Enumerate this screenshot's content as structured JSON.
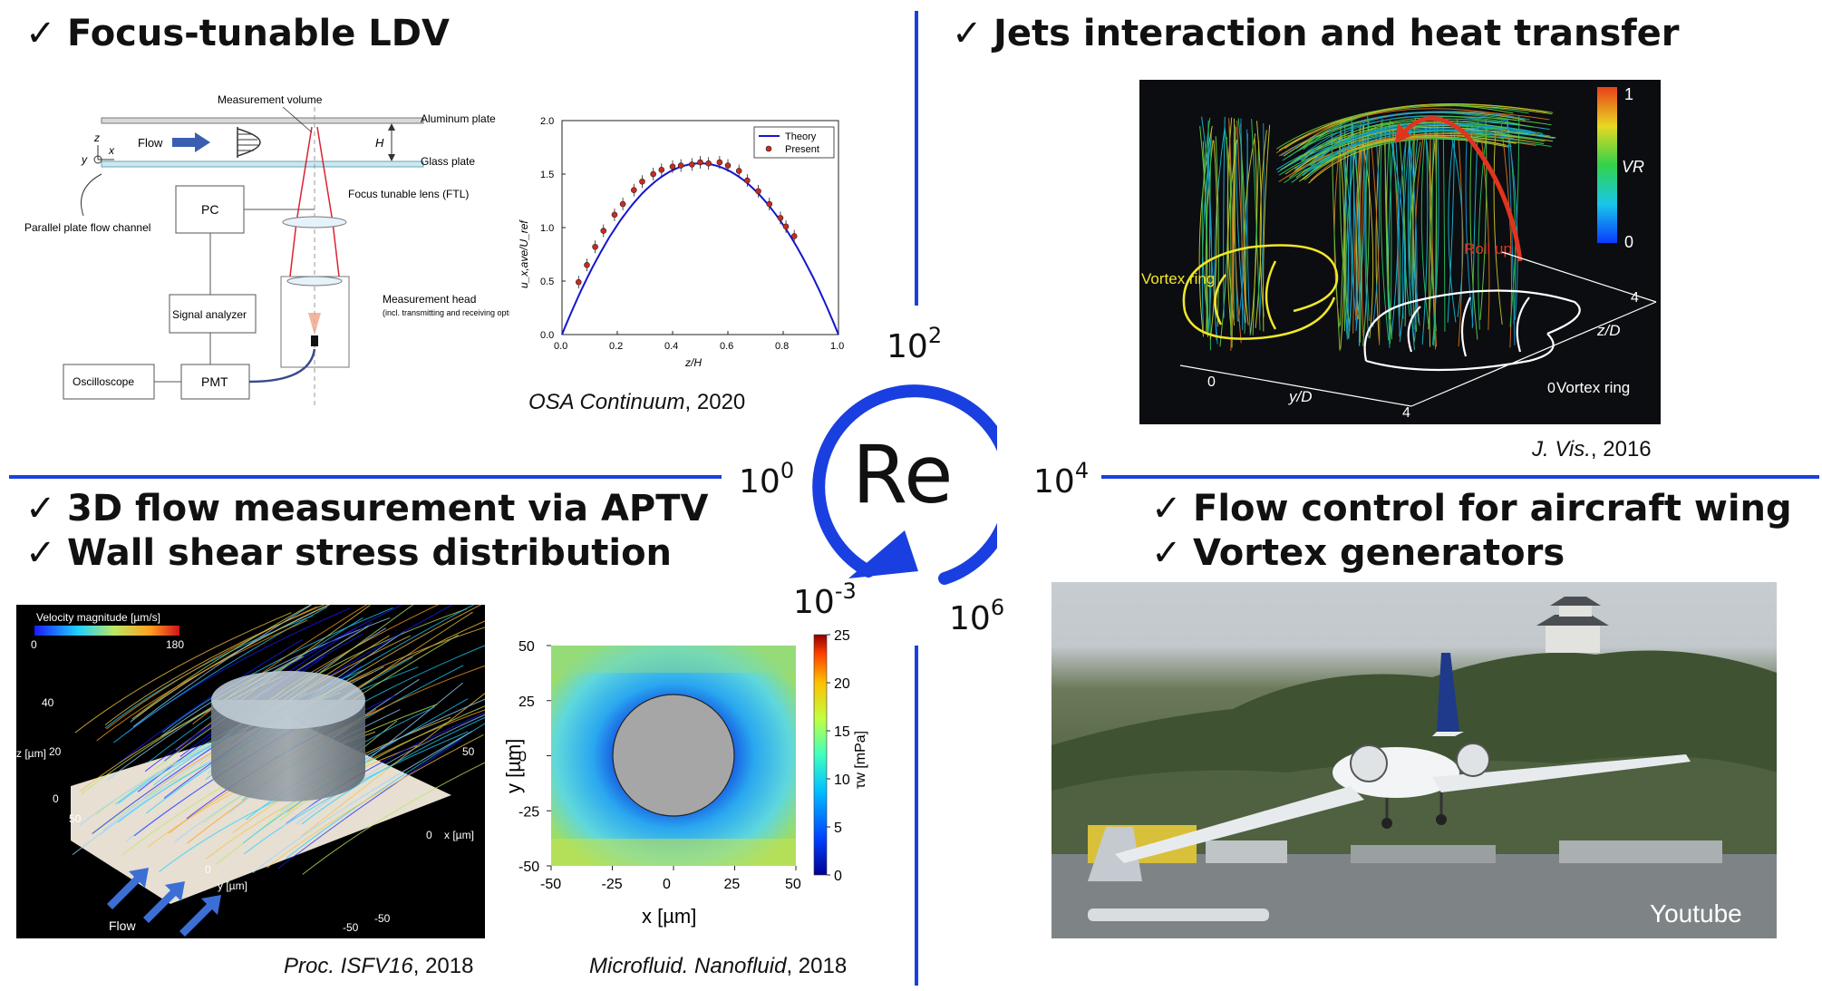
{
  "headings": {
    "top_left": "Focus-tunable LDV",
    "top_right": "Jets interaction and heat transfer",
    "bottom_left_1": "3D flow measurement via APTV",
    "bottom_left_2": "Wall shear stress distribution",
    "bottom_right_1": "Flow control for aircraft wing",
    "bottom_right_2": "Vortex generators"
  },
  "check_mark": "✓",
  "center_label": "Re",
  "re_values": [
    {
      "base": "10",
      "exp": "2"
    },
    {
      "base": "10",
      "exp": "0"
    },
    {
      "base": "10",
      "exp": "4"
    },
    {
      "base": "10",
      "exp": "-3"
    },
    {
      "base": "10",
      "exp": "6"
    }
  ],
  "citations": {
    "osa": {
      "journal": "OSA Continuum",
      "year": ", 2020"
    },
    "jvis": {
      "journal": "J. Vis.",
      "year": ", 2016"
    },
    "isfv": {
      "journal": "Proc. ISFV16",
      "year": ", 2018"
    },
    "micro": {
      "journal": "Microfluid. Nanofluid",
      "year": ", 2018"
    }
  },
  "ldv_schematic": {
    "measurement_volume": "Measurement volume",
    "aluminum_plate": "Aluminum plate",
    "glass_plate": "Glass plate",
    "flow": "Flow",
    "h": "H",
    "parallel_channel": "Parallel plate flow channel",
    "pc": "PC",
    "ftl": "Focus tunable lens (FTL)",
    "signal_analyzer": "Signal analyzer",
    "measurement_head": "Measurement head",
    "measurement_head_sub": "(incl. transmitting and receiving optics)",
    "oscilloscope": "Oscilloscope",
    "pmt": "PMT",
    "axis_z": "z",
    "axis_x": "x",
    "axis_y": "y"
  },
  "profile_chart": {
    "xlabel": "z/H",
    "ylabel": "u_x,ave/U_ref",
    "legend": [
      "Theory",
      "Present"
    ],
    "xticks": [
      "0.0",
      "0.2",
      "0.4",
      "0.6",
      "0.8",
      "1.0"
    ],
    "yticks": [
      "0.0",
      "0.5",
      "1.0",
      "1.5",
      "2.0"
    ],
    "present_points": [
      [
        0.06,
        0.49
      ],
      [
        0.09,
        0.65
      ],
      [
        0.12,
        0.82
      ],
      [
        0.15,
        0.97
      ],
      [
        0.19,
        1.12
      ],
      [
        0.22,
        1.22
      ],
      [
        0.26,
        1.35
      ],
      [
        0.29,
        1.43
      ],
      [
        0.33,
        1.5
      ],
      [
        0.36,
        1.54
      ],
      [
        0.4,
        1.57
      ],
      [
        0.43,
        1.58
      ],
      [
        0.47,
        1.59
      ],
      [
        0.5,
        1.61
      ],
      [
        0.53,
        1.6
      ],
      [
        0.57,
        1.61
      ],
      [
        0.6,
        1.58
      ],
      [
        0.64,
        1.53
      ],
      [
        0.67,
        1.44
      ],
      [
        0.71,
        1.34
      ],
      [
        0.75,
        1.22
      ],
      [
        0.79,
        1.09
      ],
      [
        0.81,
        1.01
      ],
      [
        0.84,
        0.92
      ]
    ]
  },
  "jets_figure": {
    "colorbar_max": "1",
    "colorbar_min": "0",
    "colorbar_label": "VR",
    "roll_up": "Roll up",
    "vortex_ring_left": "Vortex ring",
    "vortex_ring_right": "Vortex ring",
    "axis_zd": "z/D",
    "axis_yd": "y/D",
    "tick_0a": "0",
    "tick_4a": "4",
    "tick_0b": "0",
    "tick_4b": "4"
  },
  "aptv_figure": {
    "colorbar_title": "Velocity magnitude [µm/s]",
    "colorbar_min": "0",
    "colorbar_max": "180",
    "z_label": "z [µm]",
    "z_ticks": [
      "40",
      "20",
      "0"
    ],
    "x_label": "x [µm]",
    "x_ticks": [
      "50",
      "0",
      "-50"
    ],
    "y_label": "y [µm]",
    "y_ticks": [
      "50",
      "0",
      "-50"
    ],
    "flow_label": "Flow"
  },
  "shear_figure": {
    "xlabel": "x [µm]",
    "ylabel": "y [µm]",
    "cbar_label": "τw [mPa]",
    "xticks": [
      "-50",
      "-25",
      "0",
      "25",
      "50"
    ],
    "yticks": [
      "50",
      "25",
      "0",
      "-25",
      "-50"
    ],
    "cticks": [
      "25",
      "20",
      "15",
      "10",
      "5",
      "0"
    ]
  },
  "aircraft_photo": {
    "credit": "Youtube"
  },
  "colors": {
    "accent_blue": "#1a3fe0",
    "theory_line": "#1515d0",
    "present_marker": "#cc2a1f"
  }
}
